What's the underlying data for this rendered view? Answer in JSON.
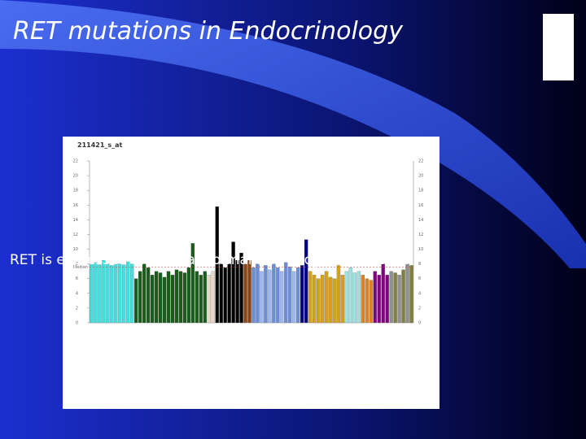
{
  "slide": {
    "title": "RET mutations in Endocrinology",
    "caption": "RET is expressed in several normal and neoplastic tissues"
  },
  "chart_data": {
    "type": "bar",
    "title": "211421_s_at",
    "categories": [
      null,
      null,
      null,
      null,
      null,
      null,
      null,
      null,
      null,
      null,
      null,
      null,
      null,
      null,
      null,
      null,
      null,
      null,
      null,
      null,
      null,
      null,
      null,
      null,
      null,
      null,
      null,
      null,
      null,
      null,
      null,
      null,
      null,
      null,
      null,
      null,
      null,
      null,
      null,
      null,
      null,
      null,
      null,
      null,
      null,
      null,
      null,
      null,
      null,
      null,
      null,
      null,
      null,
      null,
      null,
      null,
      null,
      null,
      null,
      null,
      null,
      null,
      null,
      null,
      null,
      null,
      null,
      null,
      null,
      null,
      null,
      null,
      null,
      null,
      null,
      null,
      null,
      null,
      null,
      null
    ],
    "values": [
      8,
      8.2,
      7.9,
      8.5,
      8,
      7.8,
      8.1,
      8,
      7.9,
      8.3,
      8,
      6,
      7,
      8,
      7.5,
      6.5,
      7,
      6.8,
      6.2,
      7,
      6.5,
      7.2,
      7,
      6.8,
      7.5,
      10.8,
      7,
      6.5,
      7,
      6.5,
      7,
      15.8,
      8,
      7.5,
      8,
      11,
      8.5,
      9.5,
      8,
      8.5,
      7.5,
      8,
      7,
      7.8,
      7.2,
      8,
      7.5,
      7,
      8.2,
      7.6,
      7,
      7.5,
      7.8,
      11.3,
      7,
      6.5,
      6,
      6.5,
      7,
      6.2,
      6,
      7.8,
      6.5,
      7,
      7.5,
      6.8,
      7,
      6.5,
      6,
      5.8,
      7,
      6.5,
      8,
      6.5,
      7,
      6.8,
      6.5,
      7.2,
      8,
      7.8
    ],
    "colors": [
      "#40e0e0",
      "#40e0e0",
      "#40e0e0",
      "#40e0e0",
      "#40e0e0",
      "#40e0e0",
      "#40e0e0",
      "#40e0e0",
      "#40e0e0",
      "#40e0e0",
      "#40e0e0",
      "#1a5c1a",
      "#1a5c1a",
      "#1a5c1a",
      "#1a5c1a",
      "#1a5c1a",
      "#1a5c1a",
      "#1a5c1a",
      "#1a5c1a",
      "#1a5c1a",
      "#1a5c1a",
      "#1a5c1a",
      "#1a5c1a",
      "#1a5c1a",
      "#1a5c1a",
      "#1a5c1a",
      "#1a5c1a",
      "#1a5c1a",
      "#1a5c1a",
      "#e8d8c8",
      "#e8d8c8",
      "#000000",
      "#000000",
      "#000000",
      "#000000",
      "#000000",
      "#000000",
      "#000000",
      "#8b4513",
      "#8b4513",
      "#6a8fd8",
      "#6a8fd8",
      "#a0b8f0",
      "#6a8fd8",
      "#a0b8f0",
      "#6a8fd8",
      "#6a8fd8",
      "#a0b8f0",
      "#6a8fd8",
      "#6a8fd8",
      "#a0b8f0",
      "#6a8fd8",
      "#000080",
      "#000080",
      "#d4a020",
      "#d4a020",
      "#d4a020",
      "#d4a020",
      "#d4a020",
      "#d4a020",
      "#d4a020",
      "#d4a020",
      "#d4a020",
      "#a0e0e0",
      "#a0e0e0",
      "#a0e0e0",
      "#a0e0e0",
      "#e08020",
      "#e08020",
      "#e08020",
      "#800080",
      "#800080",
      "#800080",
      "#800080",
      "#909090",
      "#808040",
      "#909090",
      "#808040",
      "#909090",
      "#808040"
    ],
    "ylim": [
      0,
      22
    ],
    "yticks": [
      0,
      2,
      4,
      6,
      8,
      10,
      12,
      14,
      16,
      18,
      20,
      22
    ],
    "median": {
      "label": "Median",
      "value": 7.6
    }
  }
}
